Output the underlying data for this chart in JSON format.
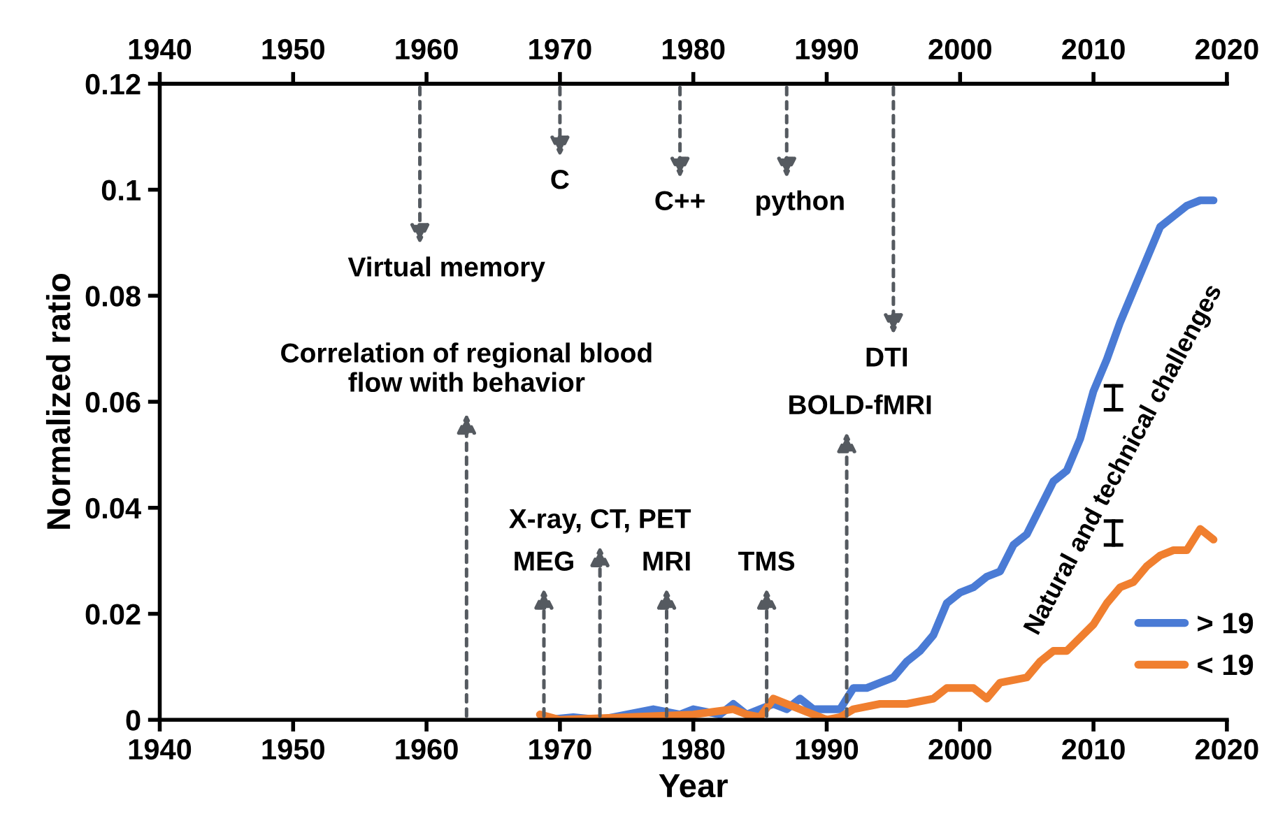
{
  "chart_data": {
    "type": "line",
    "xlabel": "Year",
    "ylabel": "Normalized ratio",
    "xlim": [
      1940,
      2020
    ],
    "xticks": [
      1940,
      1950,
      1960,
      1970,
      1980,
      1990,
      2000,
      2010,
      2020
    ],
    "x2lim": [
      1940,
      2020
    ],
    "x2ticks": [
      1940,
      1950,
      1960,
      1970,
      1980,
      1990,
      2000,
      2010,
      2020
    ],
    "ylim": [
      0,
      0.12
    ],
    "yticks": [
      0,
      0.02,
      0.04,
      0.06,
      0.08,
      0.1,
      0.12
    ],
    "grid": false,
    "legend": "bottom right",
    "marker": "none",
    "line_style": "solid",
    "series": [
      {
        "name": "> 19",
        "color": "#4a7bd5",
        "x": [
          1969,
          1971,
          1973,
          1975,
          1977,
          1979,
          1980,
          1982,
          1983,
          1984,
          1986,
          1987,
          1988,
          1989,
          1991,
          1992,
          1993,
          1994,
          1995,
          1996,
          1997,
          1998,
          1999,
          2000,
          2001,
          2002,
          2003,
          2004,
          2005,
          2006,
          2007,
          2008,
          2009,
          2010,
          2011,
          2012,
          2013,
          2014,
          2015,
          2016,
          2017,
          2018,
          2019
        ],
        "values": [
          0,
          0.0005,
          0,
          0.001,
          0.002,
          0.001,
          0.002,
          0.001,
          0.003,
          0.001,
          0.003,
          0.002,
          0.004,
          0.002,
          0.002,
          0.006,
          0.006,
          0.007,
          0.008,
          0.011,
          0.013,
          0.016,
          0.022,
          0.024,
          0.025,
          0.027,
          0.028,
          0.033,
          0.035,
          0.04,
          0.045,
          0.047,
          0.053,
          0.062,
          0.068,
          0.075,
          0.081,
          0.087,
          0.093,
          0.095,
          0.097,
          0.098,
          0.098
        ]
      },
      {
        "name": "< 19",
        "color": "#f07f2f",
        "x": [
          1968.5,
          1970,
          1980,
          1983,
          1984,
          1985,
          1986,
          1988,
          1990,
          1991,
          1992,
          1994,
          1996,
          1998,
          1999,
          2001,
          2002,
          2003,
          2005,
          2006,
          2007,
          2008,
          2010,
          2011,
          2012,
          2013,
          2014,
          2015,
          2016,
          2017,
          2018,
          2019
        ],
        "values": [
          0.001,
          0,
          0.001,
          0.002,
          0.001,
          0.0005,
          0.004,
          0.002,
          0,
          0.0005,
          0.002,
          0.003,
          0.003,
          0.004,
          0.006,
          0.006,
          0.004,
          0.007,
          0.008,
          0.011,
          0.013,
          0.013,
          0.018,
          0.022,
          0.025,
          0.026,
          0.029,
          0.031,
          0.032,
          0.032,
          0.036,
          0.034
        ]
      }
    ],
    "annotations": [
      "Virtual memory",
      "C",
      "C++",
      "python",
      "DTI",
      "BOLD-fMRI",
      "Correlation of regional blood\nflow with behavior",
      "X-ray, CT, PET",
      "MEG",
      "MRI",
      "TMS",
      "Natural and technical challenges"
    ]
  }
}
